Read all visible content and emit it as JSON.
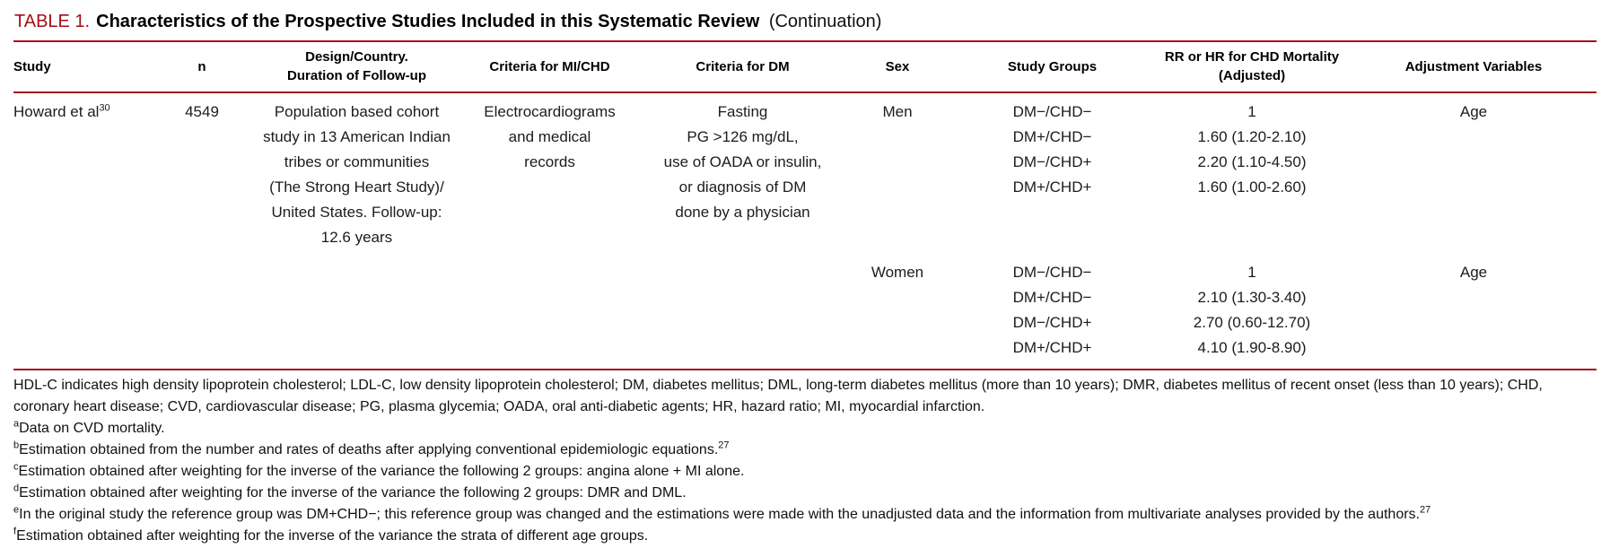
{
  "colors": {
    "accent": "#a60d16",
    "text": "#1c1c1c"
  },
  "title": {
    "label": "TABLE 1.",
    "main": "Characteristics of the Prospective Studies Included in this Systematic Review",
    "suffix": "(Continuation)"
  },
  "header": {
    "study": "Study",
    "n": "n",
    "design_line1": "Design/Country.",
    "design_line2": "Duration of Follow-up",
    "criteria_mi": "Criteria for MI/CHD",
    "criteria_dm": "Criteria for DM",
    "sex": "Sex",
    "study_groups": "Study Groups",
    "rr_line1": "RR or HR for CHD Mortality",
    "rr_line2": "(Adjusted)",
    "adjustment": "Adjustment Variables"
  },
  "row": {
    "study": "Howard et al",
    "study_sup": "30",
    "n": "4549",
    "design_lines": [
      "Population based cohort",
      "study in 13 American Indian",
      "tribes or communities",
      "(The Strong Heart Study)/",
      "United States. Follow-up:",
      "12.6 years"
    ],
    "criteria_mi_lines": [
      "Electrocardiograms",
      "and medical",
      "records"
    ],
    "criteria_dm_lines": [
      "Fasting",
      "PG >126 mg/dL,",
      "use of OADA or insulin,",
      "or diagnosis of DM",
      "done by a physician"
    ],
    "blocks": [
      {
        "sex": "Men",
        "groups": [
          "DM−/CHD−",
          "DM+/CHD−",
          "DM−/CHD+",
          "DM+/CHD+"
        ],
        "rr": [
          "1",
          "1.60 (1.20-2.10)",
          "2.20 (1.10-4.50)",
          "1.60 (1.00-2.60)"
        ],
        "adjustment": "Age"
      },
      {
        "sex": "Women",
        "groups": [
          "DM−/CHD−",
          "DM+/CHD−",
          "DM−/CHD+",
          "DM+/CHD+"
        ],
        "rr": [
          "1",
          "2.10 (1.30-3.40)",
          "2.70 (0.60-12.70)",
          "4.10 (1.90-8.90)"
        ],
        "adjustment": "Age"
      }
    ]
  },
  "footnotes": [
    {
      "text": "HDL-C indicates high density lipoprotein cholesterol; LDL-C, low density lipoprotein cholesterol; DM, diabetes mellitus; DML, long-term diabetes mellitus (more than 10 years); DMR, diabetes mellitus of recent onset (less than 10 years); CHD, coronary heart disease; CVD, cardiovascular disease; PG, plasma glycemia; OADA, oral anti-diabetic agents; HR, hazard ratio; MI, myocardial infarction."
    },
    {
      "sup": "a",
      "text": "Data on CVD mortality."
    },
    {
      "sup": "b",
      "text": "Estimation obtained from the number and rates of deaths after applying conventional epidemiologic equations.",
      "tail_sup": "27"
    },
    {
      "sup": "c",
      "text": "Estimation obtained after weighting for the inverse of the variance the following 2 groups: angina alone + MI alone."
    },
    {
      "sup": "d",
      "text": "Estimation obtained after weighting for the inverse of the variance the following 2 groups: DMR and DML."
    },
    {
      "sup": "e",
      "text": "In the original study the reference group was DM+CHD−; this reference group was changed and the estimations were made with the unadjusted data and the information from multivariate analyses provided by the authors.",
      "tail_sup": "27"
    },
    {
      "sup": "f",
      "text": "Estimation obtained after weighting for the inverse of the variance the strata of different age groups."
    }
  ]
}
